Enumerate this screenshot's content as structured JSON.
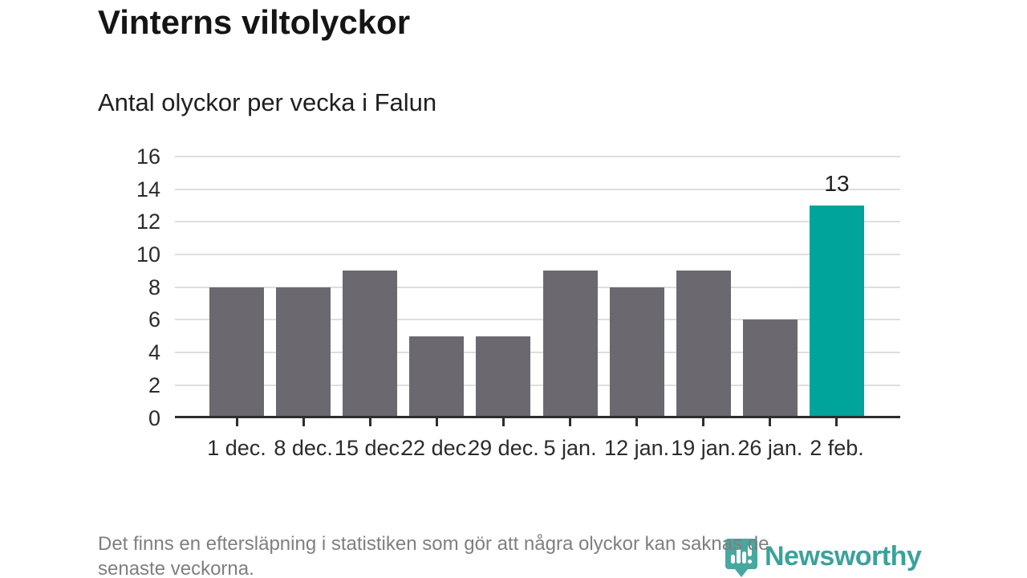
{
  "title": "Vinterns viltolyckor",
  "subtitle": "Antal olyckor per vecka i Falun",
  "footnote_lines": [
    "Det finns en eftersläpning i statistiken som gör att några olyckor kan saknas de",
    "senaste veckorna."
  ],
  "logo": {
    "text": "Newsworthy"
  },
  "colors": {
    "bar": "#6c6870",
    "highlight": "#00a49b",
    "axis": "#2d2d2d",
    "grid": "#dedede",
    "logo_teal": "#3ba29b",
    "footnote_gray": "#7f7f7f"
  },
  "chart_data": {
    "type": "bar",
    "title": "Vinterns viltolyckor",
    "subtitle": "Antal olyckor per vecka i Falun",
    "categories": [
      "1 dec.",
      "8 dec.",
      "15 dec.",
      "22 dec.",
      "29 dec.",
      "5 jan.",
      "12 jan.",
      "19 jan.",
      "26 jan.",
      "2 feb."
    ],
    "values": [
      8,
      8,
      9,
      5,
      5,
      9,
      8,
      9,
      6,
      13
    ],
    "highlight_index": 9,
    "highlight_value_label": "13",
    "xlabel": "",
    "ylabel": "",
    "ylim": [
      0,
      16
    ],
    "yticks": [
      0,
      2,
      4,
      6,
      8,
      10,
      12,
      14,
      16
    ],
    "grid": true,
    "legend_position": "none"
  }
}
